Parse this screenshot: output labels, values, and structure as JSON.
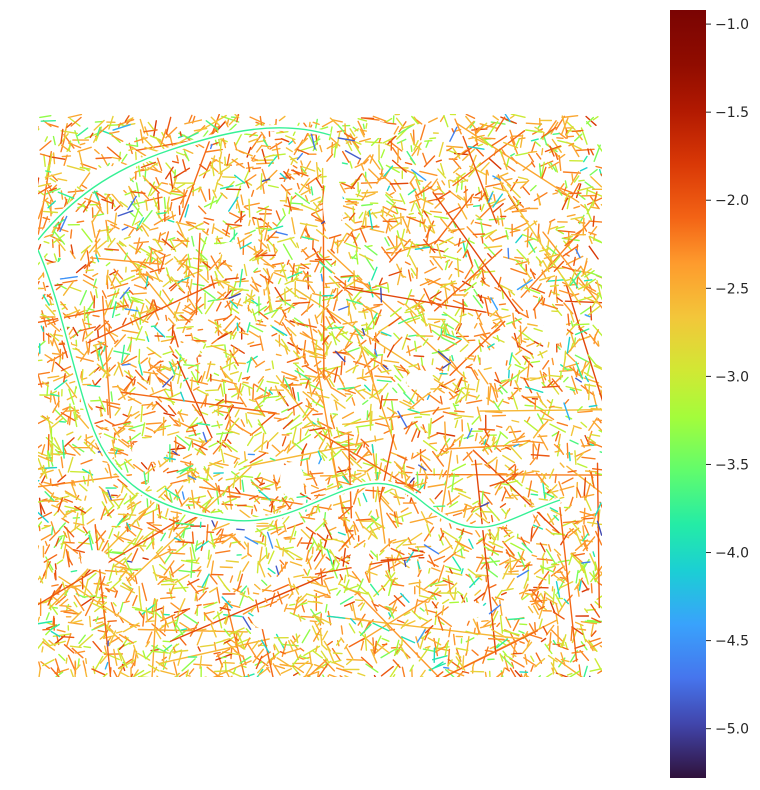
{
  "chart_data": {
    "type": "heatmap",
    "description_kind": "street network map colored by a continuous value",
    "title": "",
    "xlabel": "",
    "ylabel": "",
    "colormap": "turbo",
    "colorbar": {
      "range": [
        -5.28,
        -0.92
      ],
      "ticks": [
        -1.0,
        -1.5,
        -2.0,
        -2.5,
        -3.0,
        -3.5,
        -4.0,
        -4.5,
        -5.0
      ],
      "tick_labels": [
        "−1.0",
        "−1.5",
        "−2.0",
        "−2.5",
        "−3.0",
        "−3.5",
        "−4.0",
        "−4.5",
        "−5.0"
      ],
      "placement": "right"
    },
    "colors": {
      "low": "#30123b",
      "high": "#7a0403",
      "dominant_mid": "#f4a124"
    },
    "grid": false
  }
}
